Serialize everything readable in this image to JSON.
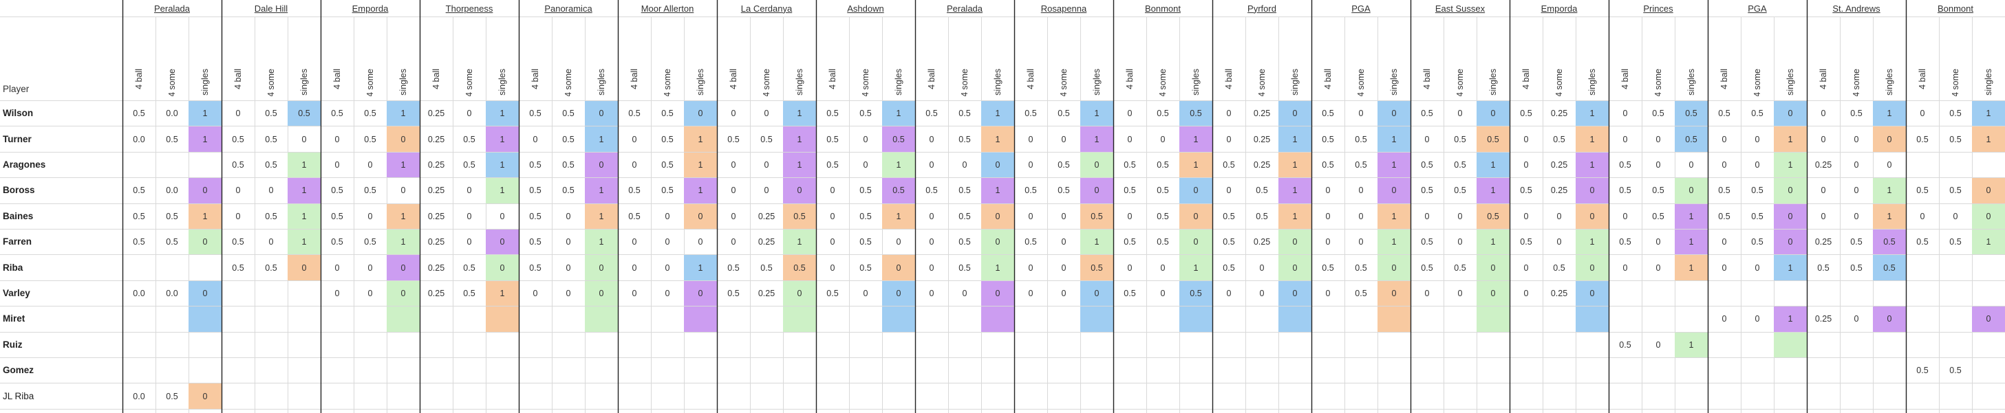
{
  "header": {
    "player_label": "Player"
  },
  "col_labels": [
    "4 ball",
    "4 some",
    "singles"
  ],
  "colors": {
    "blue": "#9fcdf2",
    "orange": "#f8c9a0",
    "green": "#cdf1c6",
    "purple": "#cc9df1",
    "grid": "#d9d9d9",
    "rule": "#222222"
  },
  "courses": [
    "Peralada",
    "Dale Hill",
    "Emporda",
    "Thorpeness",
    "Panoramica",
    "Moor Allerton",
    "La Cerdanya",
    "Ashdown",
    "Peralada",
    "Rosapenna",
    "Bonmont",
    "Pyrford",
    "PGA",
    "East Sussex",
    "Emporda",
    "Princes",
    "PGA",
    "St. Andrews",
    "Bonmont"
  ],
  "players": [
    {
      "name": "Wilson",
      "bold": true,
      "cells": [
        [
          "0.5",
          "0.0",
          "1b"
        ],
        [
          "0",
          "0.5",
          "0.5b"
        ],
        [
          "0.5",
          "0.5",
          "1b"
        ],
        [
          "0.25",
          "0",
          "1b"
        ],
        [
          "0.5",
          "0.5",
          "0b"
        ],
        [
          "0.5",
          "0.5",
          "0b"
        ],
        [
          "0",
          "0",
          "1b"
        ],
        [
          "0.5",
          "0.5",
          "1b"
        ],
        [
          "0.5",
          "0.5",
          "1b"
        ],
        [
          "0.5",
          "0.5",
          "1b"
        ],
        [
          "0",
          "0.5",
          "0.5b"
        ],
        [
          "0",
          "0.25",
          "0b"
        ],
        [
          "0.5",
          "0",
          "0b"
        ],
        [
          "0.5",
          "0",
          "0b"
        ],
        [
          "0.5",
          "0.25",
          "1b"
        ],
        [
          "0",
          "0.5",
          "0.5b"
        ],
        [
          "0.5",
          "0.5",
          "0b"
        ],
        [
          "0",
          "0.5",
          "1b"
        ],
        [
          "0",
          "0.5",
          "1b"
        ]
      ]
    },
    {
      "name": "Turner",
      "bold": true,
      "cells": [
        [
          "0.0",
          "0.5",
          "1p"
        ],
        [
          "0.5",
          "0.5",
          "0"
        ],
        [
          "0",
          "0.5",
          "0o"
        ],
        [
          "0.25",
          "0.5",
          "1p"
        ],
        [
          "0",
          "0.5",
          "1b"
        ],
        [
          "0",
          "0.5",
          "1o"
        ],
        [
          "0.5",
          "0.5",
          "1p"
        ],
        [
          "0.5",
          "0",
          "0.5p"
        ],
        [
          "0",
          "0.5",
          "1o"
        ],
        [
          "0",
          "0",
          "1p"
        ],
        [
          "0",
          "0",
          "1p"
        ],
        [
          "0",
          "0.25",
          "1b"
        ],
        [
          "0.5",
          "0.5",
          "1b"
        ],
        [
          "0",
          "0.5",
          "0.5o"
        ],
        [
          "0",
          "0.5",
          "1o"
        ],
        [
          "0",
          "0",
          "0.5b"
        ],
        [
          "0",
          "0",
          "1o"
        ],
        [
          "0",
          "0",
          "0o"
        ],
        [
          "0.5",
          "0.5",
          "1o"
        ]
      ]
    },
    {
      "name": "Aragones",
      "bold": true,
      "cells": [
        [
          "",
          "",
          ""
        ],
        [
          "0.5",
          "0.5",
          "1g"
        ],
        [
          "0",
          "0",
          "1p"
        ],
        [
          "0.25",
          "0.5",
          "1b"
        ],
        [
          "0.5",
          "0.5",
          "0p"
        ],
        [
          "0",
          "0.5",
          "1o"
        ],
        [
          "0",
          "0",
          "1p"
        ],
        [
          "0.5",
          "0",
          "1g"
        ],
        [
          "0",
          "0",
          "0b"
        ],
        [
          "0",
          "0.5",
          "0g"
        ],
        [
          "0.5",
          "0.5",
          "1o"
        ],
        [
          "0.5",
          "0.25",
          "1o"
        ],
        [
          "0.5",
          "0.5",
          "1p"
        ],
        [
          "0.5",
          "0.5",
          "1b"
        ],
        [
          "0",
          "0.25",
          "1p"
        ],
        [
          "0.5",
          "0",
          "0"
        ],
        [
          "0",
          "0",
          "1g"
        ],
        [
          "0.25",
          "0",
          "0"
        ],
        [
          "",
          "",
          " "
        ]
      ]
    },
    {
      "name": "Boross",
      "bold": true,
      "cells": [
        [
          "0.5",
          "0.0",
          "0p"
        ],
        [
          "0",
          "0",
          "1p"
        ],
        [
          "0.5",
          "0.5",
          "0"
        ],
        [
          "0.25",
          "0",
          "1g"
        ],
        [
          "0.5",
          "0.5",
          "1p"
        ],
        [
          "0.5",
          "0.5",
          "1p"
        ],
        [
          "0",
          "0",
          "0p"
        ],
        [
          "0",
          "0.5",
          "0.5p"
        ],
        [
          "0.5",
          "0.5",
          "1p"
        ],
        [
          "0.5",
          "0.5",
          "0p"
        ],
        [
          "0.5",
          "0.5",
          "0b"
        ],
        [
          "0",
          "0.5",
          "1p"
        ],
        [
          "0",
          "0",
          "0p"
        ],
        [
          "0.5",
          "0.5",
          "1p"
        ],
        [
          "0.5",
          "0.25",
          "0p"
        ],
        [
          "0.5",
          "0.5",
          "0g"
        ],
        [
          "0.5",
          "0.5",
          "0g"
        ],
        [
          "0",
          "0",
          "1g"
        ],
        [
          "0.5",
          "0.5",
          "0o"
        ]
      ]
    },
    {
      "name": "Baines",
      "bold": true,
      "cells": [
        [
          "0.5",
          "0.5",
          "1o"
        ],
        [
          "0",
          "0.5",
          "1g"
        ],
        [
          "0.5",
          "0",
          "1o"
        ],
        [
          "0.25",
          "0",
          "0"
        ],
        [
          "0.5",
          "0",
          "1o"
        ],
        [
          "0.5",
          "0",
          "0o"
        ],
        [
          "0",
          "0.25",
          "0.5o"
        ],
        [
          "0",
          "0.5",
          "1o"
        ],
        [
          "0",
          "0.5",
          "0o"
        ],
        [
          "0",
          "0",
          "0.5o"
        ],
        [
          "0",
          "0.5",
          "0o"
        ],
        [
          "0.5",
          "0.5",
          "1o"
        ],
        [
          "0",
          "0",
          "1o"
        ],
        [
          "0",
          "0",
          "0.5o"
        ],
        [
          "0",
          "0",
          "0o"
        ],
        [
          "0",
          "0.5",
          "1p"
        ],
        [
          "0.5",
          "0.5",
          "0p"
        ],
        [
          "0",
          "0",
          "1o"
        ],
        [
          "0",
          "0",
          "0g"
        ]
      ]
    },
    {
      "name": "Farren",
      "bold": true,
      "cells": [
        [
          "0.5",
          "0.5",
          "0g"
        ],
        [
          "0.5",
          "0",
          "1g"
        ],
        [
          "0.5",
          "0.5",
          "1g"
        ],
        [
          "0.25",
          "0",
          "0p"
        ],
        [
          "0.5",
          "0",
          "1g"
        ],
        [
          "0",
          "0",
          "0"
        ],
        [
          "0",
          "0.25",
          "1g"
        ],
        [
          "0",
          "0.5",
          "0"
        ],
        [
          "0",
          "0.5",
          "0g"
        ],
        [
          "0.5",
          "0",
          "1g"
        ],
        [
          "0.5",
          "0.5",
          "0g"
        ],
        [
          "0.5",
          "0.25",
          "0g"
        ],
        [
          "0",
          "0",
          "1g"
        ],
        [
          "0.5",
          "0",
          "1g"
        ],
        [
          "0.5",
          "0",
          "1g"
        ],
        [
          "0.5",
          "0",
          "1p"
        ],
        [
          "0",
          "0.5",
          "0p"
        ],
        [
          "0.25",
          "0.5",
          "0.5p"
        ],
        [
          "0.5",
          "0.5",
          "1g"
        ]
      ]
    },
    {
      "name": "Riba",
      "bold": true,
      "cells": [
        [
          "",
          "",
          ""
        ],
        [
          "0.5",
          "0.5",
          "0o"
        ],
        [
          "0",
          "0",
          "0p"
        ],
        [
          "0.25",
          "0.5",
          "0g"
        ],
        [
          "0.5",
          "0",
          "0g"
        ],
        [
          "0",
          "0",
          "1b"
        ],
        [
          "0.5",
          "0.5",
          "0.5o"
        ],
        [
          "0",
          "0.5",
          "0o"
        ],
        [
          "0",
          "0.5",
          "1g"
        ],
        [
          "0",
          "0",
          "0.5o"
        ],
        [
          "0",
          "0",
          "1g"
        ],
        [
          "0.5",
          "0",
          "0g"
        ],
        [
          "0.5",
          "0.5",
          "0g"
        ],
        [
          "0.5",
          "0.5",
          "0g"
        ],
        [
          "0",
          "0.5",
          "0g"
        ],
        [
          "0",
          "0",
          "1o"
        ],
        [
          "0",
          "0",
          "1b"
        ],
        [
          "0.5",
          "0.5",
          "0.5b"
        ],
        [
          "",
          "",
          " "
        ]
      ]
    },
    {
      "name": "Varley",
      "bold": true,
      "cells": [
        [
          "0.0",
          "0.0",
          "0b"
        ],
        [
          "",
          "",
          ""
        ],
        [
          "0",
          "0",
          "0g"
        ],
        [
          "0.25",
          "0.5",
          "1o"
        ],
        [
          "0",
          "0",
          "0g"
        ],
        [
          "0",
          "0",
          "0p"
        ],
        [
          "0.5",
          "0.25",
          "0g"
        ],
        [
          "0.5",
          "0",
          "0b"
        ],
        [
          "0",
          "0",
          "0p"
        ],
        [
          "0",
          "0",
          "0b"
        ],
        [
          "0.5",
          "0",
          "0.5b"
        ],
        [
          "0",
          "0",
          "0b"
        ],
        [
          "0",
          "0.5",
          "0o"
        ],
        [
          "0",
          "0",
          "0g"
        ],
        [
          "0",
          "0.25",
          "0b"
        ],
        [
          "",
          "",
          ""
        ],
        [
          "",
          "",
          ""
        ],
        [
          "",
          "",
          ""
        ],
        [
          "",
          "",
          ""
        ]
      ]
    },
    {
      "name": "Miret",
      "bold": true,
      "cells": [
        [
          "",
          "",
          "b"
        ],
        [
          "",
          "",
          ""
        ],
        [
          "",
          "",
          "g"
        ],
        [
          "",
          "",
          "o"
        ],
        [
          "",
          "",
          "g"
        ],
        [
          "",
          "",
          "p"
        ],
        [
          "",
          "",
          "g"
        ],
        [
          "",
          "",
          "b"
        ],
        [
          "",
          "",
          "p"
        ],
        [
          "",
          "",
          "b"
        ],
        [
          "",
          "",
          "b"
        ],
        [
          "",
          "",
          "b"
        ],
        [
          "",
          "",
          "o"
        ],
        [
          "",
          "",
          "g"
        ],
        [
          "",
          "",
          "b"
        ],
        [
          "",
          "",
          ""
        ],
        [
          "0",
          "0",
          "1p"
        ],
        [
          "0.25",
          "0",
          "0p"
        ],
        [
          "",
          "",
          "0p"
        ]
      ]
    },
    {
      "name": "Ruiz",
      "bold": true,
      "cells": [
        [
          "",
          "",
          ""
        ],
        [
          "",
          "",
          ""
        ],
        [
          "",
          "",
          ""
        ],
        [
          "",
          "",
          ""
        ],
        [
          "",
          "",
          ""
        ],
        [
          "",
          "",
          ""
        ],
        [
          "",
          "",
          ""
        ],
        [
          "",
          "",
          ""
        ],
        [
          "",
          "",
          ""
        ],
        [
          "",
          "",
          ""
        ],
        [
          "",
          "",
          ""
        ],
        [
          "",
          "",
          ""
        ],
        [
          "",
          "",
          ""
        ],
        [
          "",
          "",
          ""
        ],
        [
          "",
          "",
          ""
        ],
        [
          "0.5",
          "0",
          "1g"
        ],
        [
          "",
          "",
          "g"
        ],
        [
          "",
          "",
          ""
        ],
        [
          "",
          "",
          ""
        ]
      ]
    },
    {
      "name": "Gomez",
      "bold": true,
      "cells": [
        [
          "",
          "",
          ""
        ],
        [
          "",
          "",
          ""
        ],
        [
          "",
          "",
          ""
        ],
        [
          "",
          "",
          ""
        ],
        [
          "",
          "",
          ""
        ],
        [
          "",
          "",
          ""
        ],
        [
          "",
          "",
          ""
        ],
        [
          "",
          "",
          ""
        ],
        [
          "",
          "",
          ""
        ],
        [
          "",
          "",
          ""
        ],
        [
          "",
          "",
          ""
        ],
        [
          "",
          "",
          ""
        ],
        [
          "",
          "",
          ""
        ],
        [
          "",
          "",
          ""
        ],
        [
          "",
          "",
          ""
        ],
        [
          "",
          "",
          ""
        ],
        [
          "",
          "",
          ""
        ],
        [
          "",
          "",
          ""
        ],
        [
          "0.5",
          "0.5",
          ""
        ]
      ]
    },
    {
      "name": "JL Riba",
      "bold": false,
      "cells": [
        [
          "0.0",
          "0.5",
          "0o"
        ],
        [
          "",
          "",
          ""
        ],
        [
          "",
          "",
          ""
        ],
        [
          "",
          "",
          ""
        ],
        [
          "",
          "",
          ""
        ],
        [
          "",
          "",
          ""
        ],
        [
          "",
          "",
          ""
        ],
        [
          "",
          "",
          ""
        ],
        [
          "",
          "",
          ""
        ],
        [
          "",
          "",
          ""
        ],
        [
          "",
          "",
          ""
        ],
        [
          "",
          "",
          ""
        ],
        [
          "",
          "",
          ""
        ],
        [
          "",
          "",
          ""
        ],
        [
          "",
          "",
          ""
        ],
        [
          "",
          "",
          ""
        ],
        [
          "",
          "",
          ""
        ],
        [
          "",
          "",
          ""
        ],
        [
          "",
          "",
          ""
        ]
      ]
    }
  ]
}
